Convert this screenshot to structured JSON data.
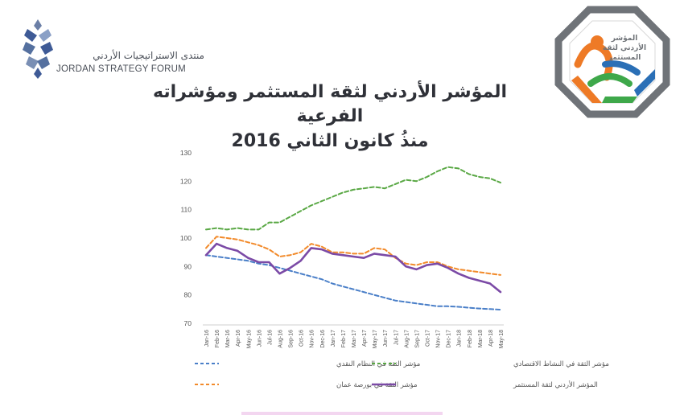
{
  "header": {
    "org_name_ar": "منتدى الاستراتيجيات الأردني",
    "org_name_en": "JORDAN STRATEGY FORUM"
  },
  "badge": {
    "text_ar": "المؤشر الأردني لثقة المستثمر"
  },
  "title": {
    "line1": "المؤشر الأردني لثقة المستثمر ومؤشراته الفرعية",
    "line2": "منذُ كانون الثاني 2016"
  },
  "colors": {
    "financial_system": "#4a7fc8",
    "economic_activity": "#5aa845",
    "amman_stock_exchange": "#f28a2a",
    "investor_confidence": "#7b4aa6",
    "badge_orange": "#ee7a26",
    "badge_green": "#3ea84a",
    "badge_blue": "#2a6fb6",
    "badge_grey": "#6f7378"
  },
  "chart_data": {
    "type": "line",
    "ylim": [
      70,
      130
    ],
    "yticks": [
      "130",
      "120",
      "110",
      "100",
      "90",
      "80",
      "70"
    ],
    "ytick_values": [
      130,
      120,
      110,
      100,
      90,
      80,
      70
    ],
    "grid": false,
    "legend_position": "bottom",
    "categories": [
      "Jan-16",
      "Feb-16",
      "Mar-16",
      "Apr-16",
      "May-16",
      "Jun-16",
      "Jul-16",
      "Aug-16",
      "Sep-16",
      "Oct-16",
      "Nov-16",
      "Dec-16",
      "Jan-17",
      "Feb-17",
      "Mar-17",
      "Apr-17",
      "May-17",
      "Jun-17",
      "Jul-17",
      "Aug-17",
      "Sep-17",
      "Oct-17",
      "Nov-17",
      "Dec-17",
      "Jan-18",
      "Feb-18",
      "Mar-18",
      "Apr-18",
      "May-18"
    ],
    "series": [
      {
        "name": "مؤشر الثقة في النظام النقدي",
        "color_key": "financial_system",
        "style": "dashed",
        "values": [
          94,
          93.5,
          93,
          92.5,
          92,
          91,
          90.5,
          89.5,
          88.5,
          87.5,
          86.5,
          85.5,
          84,
          83,
          82,
          81,
          80,
          79,
          78,
          77.5,
          77,
          76.5,
          76,
          76,
          75.8,
          75.5,
          75.2,
          75,
          74.8
        ]
      },
      {
        "name": "مؤشر الثقة في النشاط الاقتصادي",
        "color_key": "economic_activity",
        "style": "dashed",
        "values": [
          103,
          103.5,
          103,
          103.5,
          103,
          103,
          105.5,
          105.5,
          107.5,
          109.5,
          111.5,
          113,
          114.5,
          116,
          117,
          117.5,
          118,
          117.5,
          119,
          120.5,
          120,
          121.5,
          123.5,
          125,
          124.5,
          122.5,
          121.5,
          121,
          119.5
        ]
      },
      {
        "name": "مؤشر الثقة في بورصة عمان",
        "color_key": "amman_stock_exchange",
        "style": "dashed",
        "values": [
          96.5,
          100.5,
          100,
          99.5,
          98.5,
          97.5,
          96,
          93.5,
          94,
          95,
          98,
          97,
          95,
          95,
          94.5,
          94.5,
          96.5,
          96,
          93,
          91,
          90.5,
          91.5,
          91.5,
          90,
          89,
          88.5,
          88,
          87.5,
          87
        ]
      },
      {
        "name": "المؤشر الأردني لثقة المستثمر",
        "color_key": "investor_confidence",
        "style": "solid",
        "values": [
          94,
          98,
          96.5,
          95.5,
          93,
          91.5,
          91.5,
          87.5,
          89.5,
          92,
          96.5,
          96,
          94.5,
          94,
          93.5,
          93,
          94.5,
          94,
          93.5,
          90,
          89,
          90.5,
          91,
          89.5,
          87.5,
          86,
          85,
          84,
          81
        ]
      }
    ]
  }
}
